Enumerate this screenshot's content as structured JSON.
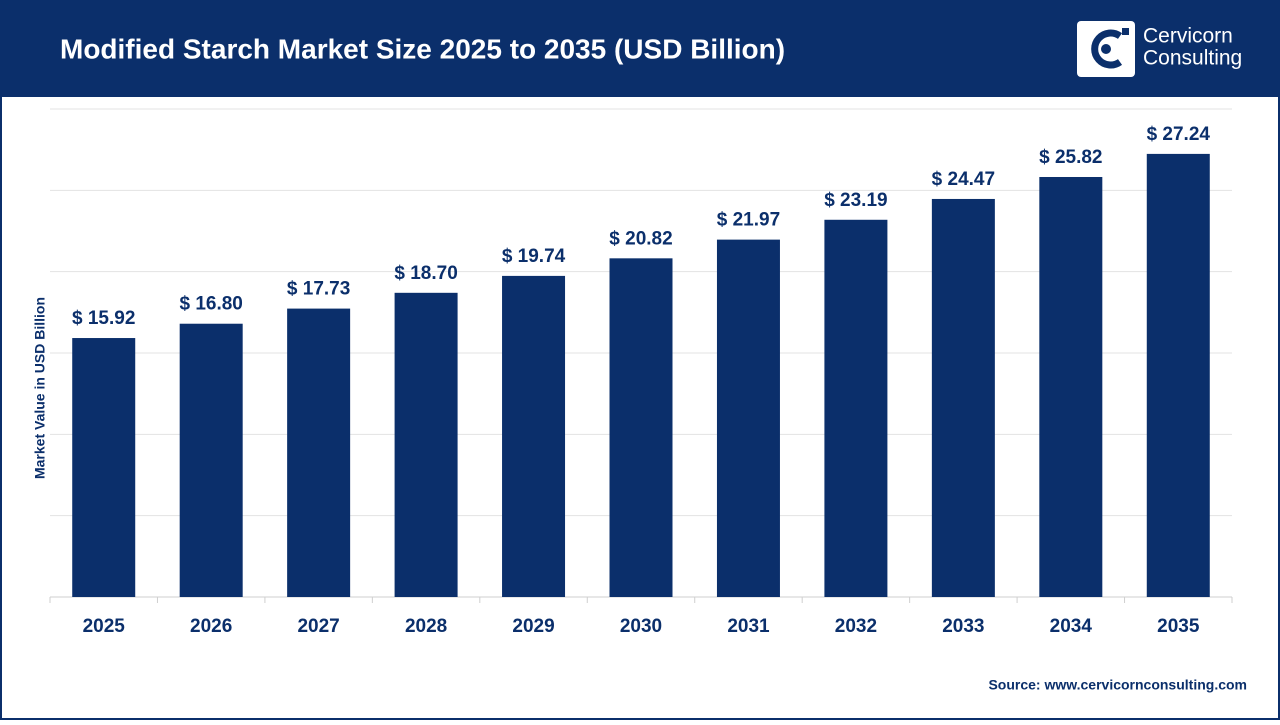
{
  "chart_data": {
    "type": "bar",
    "title": "Modified Starch Market Size 2025 to 2035 (USD Billion)",
    "brand": [
      "Cervicorn",
      "Consulting"
    ],
    "y_label": "Market Value in USD Billion",
    "source": "Source: www.cervicornconsulting.com",
    "categories": [
      "2025",
      "2026",
      "2027",
      "2028",
      "2029",
      "2030",
      "2031",
      "2032",
      "2033",
      "2034",
      "2035"
    ],
    "values": [
      15.92,
      16.8,
      17.73,
      18.7,
      19.74,
      20.82,
      21.97,
      23.19,
      24.47,
      25.82,
      27.24
    ],
    "value_labels": [
      "$ 15.92",
      "$ 16.80",
      "$ 17.73",
      "$ 18.70",
      "$ 19.74",
      "$ 20.82",
      "$ 21.97",
      "$ 23.19",
      "$ 24.47",
      "$ 25.82",
      "$ 27.24"
    ],
    "color": "#0b2f6b",
    "ylim": [
      0,
      30
    ],
    "yticks": [
      0,
      5,
      10,
      15,
      20,
      25,
      30
    ],
    "grid": true
  }
}
